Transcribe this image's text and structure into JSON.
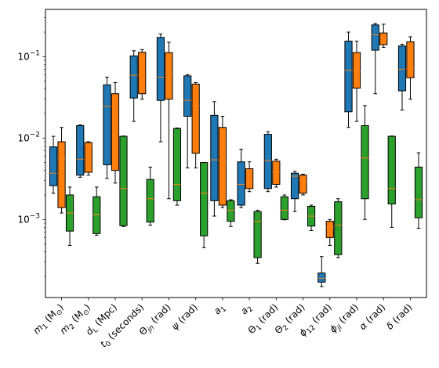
{
  "chart_data": {
    "type": "box",
    "yscale": "log",
    "ylim": [
      0.00011,
      0.38
    ],
    "yticks": [
      {
        "value": 0.001,
        "base": "10",
        "exp": "−3"
      },
      {
        "value": 0.01,
        "base": "10",
        "exp": "−2"
      },
      {
        "value": 0.1,
        "base": "10",
        "exp": "−1"
      }
    ],
    "categories": [
      "m1 (M☉)",
      "m2 (M☉)",
      "dL (Mpc)",
      "t0 (seconds)",
      "Θjn (rad)",
      "ψ (rad)",
      "a1",
      "a2",
      "Θ1 (rad)",
      "Θ2 (rad)",
      "ϕ12 (rad)",
      "ϕjl (rad)",
      "α (rad)",
      "δ (rad)"
    ],
    "category_labels": [
      {
        "base": "m",
        "sub": "1",
        "suffix": " (M",
        "suffix_sub": "⊙",
        "end": ")"
      },
      {
        "base": "m",
        "sub": "2",
        "suffix": " (M",
        "suffix_sub": "⊙",
        "end": ")"
      },
      {
        "base": "d",
        "sub": "L",
        "suffix": " (Mpc)"
      },
      {
        "base": "t",
        "sub": "0",
        "suffix": " (seconds)"
      },
      {
        "base": "Θ",
        "sub": "jn",
        "suffix": " (rad)"
      },
      {
        "base": "ψ",
        "sub": "",
        "suffix": " (rad)"
      },
      {
        "base": "a",
        "sub": "1",
        "suffix": ""
      },
      {
        "base": "a",
        "sub": "2",
        "suffix": ""
      },
      {
        "base": "Θ",
        "sub": "1",
        "suffix": " (rad)"
      },
      {
        "base": "Θ",
        "sub": "2",
        "suffix": " (rad)"
      },
      {
        "base": "ϕ",
        "sub": "12",
        "suffix": " (rad)"
      },
      {
        "base": "ϕ",
        "sub": "jl",
        "suffix": " (rad)"
      },
      {
        "base": "α",
        "sub": "",
        "suffix": " (rad)"
      },
      {
        "base": "δ",
        "sub": "",
        "suffix": " (rad)"
      }
    ],
    "median_color": "#ff7f0e",
    "series": [
      {
        "color": "#1f77b4",
        "boxes": [
          {
            "whislo": 0.0021,
            "q1": 0.0026,
            "med": 0.0037,
            "q3": 0.0078,
            "whishi": 0.0105
          },
          {
            "whislo": 0.0033,
            "q1": 0.0035,
            "med": 0.0055,
            "q3": 0.0142,
            "whishi": 0.0145
          },
          {
            "whislo": 0.0032,
            "q1": 0.0047,
            "med": 0.0245,
            "q3": 0.045,
            "whishi": 0.056
          },
          {
            "whislo": 0.016,
            "q1": 0.031,
            "med": 0.059,
            "q3": 0.102,
            "whishi": 0.118
          },
          {
            "whislo": 0.009,
            "q1": 0.029,
            "med": 0.056,
            "q3": 0.172,
            "whishi": 0.19
          },
          {
            "whislo": 0.0043,
            "q1": 0.0185,
            "med": 0.029,
            "q3": 0.058,
            "whishi": 0.06
          },
          {
            "whislo": 0.0011,
            "q1": 0.0017,
            "med": 0.0054,
            "q3": 0.019,
            "whishi": 0.028
          },
          {
            "whislo": 0.0014,
            "q1": 0.0015,
            "med": 0.0027,
            "q3": 0.0051,
            "whishi": 0.0073
          },
          {
            "whislo": 0.0022,
            "q1": 0.0024,
            "med": 0.0053,
            "q3": 0.0111,
            "whishi": 0.012
          },
          {
            "whislo": 0.00125,
            "q1": 0.0018,
            "med": 0.0034,
            "q3": 0.0037,
            "whishi": 0.0039
          },
          {
            "whislo": 0.00015,
            "q1": 0.00017,
            "med": 0.00019,
            "q3": 0.00022,
            "whishi": 0.00035
          },
          {
            "whislo": 0.0135,
            "q1": 0.021,
            "med": 0.068,
            "q3": 0.155,
            "whishi": 0.2
          },
          {
            "whislo": 0.035,
            "q1": 0.12,
            "med": 0.185,
            "q3": 0.245,
            "whishi": 0.255
          },
          {
            "whislo": 0.022,
            "q1": 0.038,
            "med": 0.07,
            "q3": 0.135,
            "whishi": 0.142
          }
        ]
      },
      {
        "color": "#ff7f0e",
        "boxes": [
          {
            "whislo": 0.0012,
            "q1": 0.0014,
            "med": 0.0056,
            "q3": 0.009,
            "whishi": 0.0135
          },
          {
            "whislo": 0.0035,
            "q1": 0.0038,
            "med": 0.0083,
            "q3": 0.0088,
            "whishi": 0.009
          },
          {
            "whislo": 0.0028,
            "q1": 0.004,
            "med": 0.025,
            "q3": 0.035,
            "whishi": 0.048
          },
          {
            "whislo": 0.03,
            "q1": 0.035,
            "med": 0.06,
            "q3": 0.113,
            "whishi": 0.122
          },
          {
            "whislo": 0.0018,
            "q1": 0.03,
            "med": 0.062,
            "q3": 0.112,
            "whishi": 0.15
          },
          {
            "whislo": 0.0043,
            "q1": 0.0065,
            "med": 0.025,
            "q3": 0.046,
            "whishi": 0.048
          },
          {
            "whislo": 0.0014,
            "q1": 0.0015,
            "med": 0.0053,
            "q3": 0.0135,
            "whishi": 0.0185
          },
          {
            "whislo": 0.0022,
            "q1": 0.0024,
            "med": 0.0029,
            "q3": 0.0042,
            "whishi": 0.0051
          },
          {
            "whislo": 0.0025,
            "q1": 0.0027,
            "med": 0.0038,
            "q3": 0.0052,
            "whishi": 0.0055
          },
          {
            "whislo": 0.002,
            "q1": 0.0021,
            "med": 0.003,
            "q3": 0.0035,
            "whishi": 0.0036
          },
          {
            "whislo": 0.00048,
            "q1": 0.0006,
            "med": 0.0008,
            "q3": 0.00095,
            "whishi": 0.001
          },
          {
            "whislo": 0.016,
            "q1": 0.041,
            "med": 0.065,
            "q3": 0.112,
            "whishi": 0.155
          },
          {
            "whislo": 0.13,
            "q1": 0.14,
            "med": 0.17,
            "q3": 0.195,
            "whishi": 0.25
          },
          {
            "whislo": 0.03,
            "q1": 0.055,
            "med": 0.072,
            "q3": 0.152,
            "whishi": 0.175
          }
        ]
      },
      {
        "color": "#2ca02c",
        "boxes": [
          {
            "whislo": 0.00048,
            "q1": 0.00072,
            "med": 0.0012,
            "q3": 0.002,
            "whishi": 0.0025
          },
          {
            "whislo": 0.00064,
            "q1": 0.00067,
            "med": 0.00115,
            "q3": 0.0019,
            "whishi": 0.0025
          },
          {
            "whislo": 0.00082,
            "q1": 0.00084,
            "med": 0.0024,
            "q3": 0.0105,
            "whishi": 0.0106
          },
          {
            "whislo": 0.00085,
            "q1": 0.00093,
            "med": 0.0018,
            "q3": 0.0031,
            "whishi": 0.0044
          },
          {
            "whislo": 0.0015,
            "q1": 0.0017,
            "med": 0.0027,
            "q3": 0.0131,
            "whishi": 0.0133
          },
          {
            "whislo": 0.00045,
            "q1": 0.00063,
            "med": 0.0021,
            "q3": 0.005,
            "whishi": 0.005
          },
          {
            "whislo": 0.00082,
            "q1": 0.00095,
            "med": 0.0013,
            "q3": 0.0017,
            "whishi": 0.00175
          },
          {
            "whislo": 0.00029,
            "q1": 0.00034,
            "med": 0.00095,
            "q3": 0.00125,
            "whishi": 0.0013
          },
          {
            "whislo": 0.00099,
            "q1": 0.001,
            "med": 0.0013,
            "q3": 0.0019,
            "whishi": 0.002
          },
          {
            "whislo": 0.00073,
            "q1": 0.00083,
            "med": 0.0011,
            "q3": 0.00145,
            "whishi": 0.0015
          },
          {
            "whislo": 0.00034,
            "q1": 0.00037,
            "med": 0.00085,
            "q3": 0.00165,
            "whishi": 0.0018
          },
          {
            "whislo": 0.001,
            "q1": 0.0018,
            "med": 0.0057,
            "q3": 0.0142,
            "whishi": 0.025
          },
          {
            "whislo": 0.0008,
            "q1": 0.00155,
            "med": 0.0024,
            "q3": 0.0105,
            "whishi": 0.0106
          },
          {
            "whislo": 0.00078,
            "q1": 0.00105,
            "med": 0.00175,
            "q3": 0.0044,
            "whishi": 0.0066
          }
        ]
      }
    ]
  }
}
